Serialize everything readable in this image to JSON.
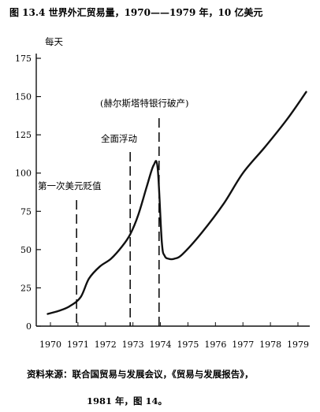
{
  "chart_data": {
    "type": "line",
    "title": "图 13.4 世界外汇贸易量，1970——1979 年，10 亿美元",
    "ylabel": "每天",
    "xlabel": "",
    "ylim": [
      0,
      175
    ],
    "xlim": [
      1970,
      1979
    ],
    "y_ticks": [
      0,
      25,
      50,
      75,
      100,
      125,
      150,
      175
    ],
    "x_tick_labels": [
      "1970",
      "1971",
      "1972",
      "1973",
      "1974",
      "1975",
      "1976",
      "1977",
      "1978",
      "1979"
    ],
    "grid": false,
    "series": [
      {
        "name": "",
        "x": [
          1969.9,
          1970.3,
          1970.7,
          1971.1,
          1971.4,
          1971.8,
          1972.2,
          1972.6,
          1972.9,
          1973.2,
          1973.5,
          1973.75,
          1973.9,
          1974.05,
          1974.15,
          1974.3,
          1974.5,
          1974.8,
          1975.5,
          1976.3,
          1977.0,
          1977.8,
          1978.6,
          1979.3
        ],
        "values": [
          8,
          10,
          13,
          19,
          31,
          39,
          44,
          52,
          60,
          73,
          91,
          105,
          103,
          55,
          46,
          44,
          44,
          47,
          61,
          80,
          100,
          117,
          135,
          153
        ]
      }
    ],
    "events": [
      {
        "label": "第一次美元贬值",
        "x": 1970.95
      },
      {
        "label": "全面浮动",
        "x": 1972.9
      },
      {
        "label": "(赫尔斯塔特银行破产)",
        "x": 1973.95
      }
    ]
  },
  "source_line1": "资料来源：联合国贸易与发展会议，《贸易与发展报告》，",
  "source_line2": "1981 年，图 14。",
  "ink_color": "#111111"
}
